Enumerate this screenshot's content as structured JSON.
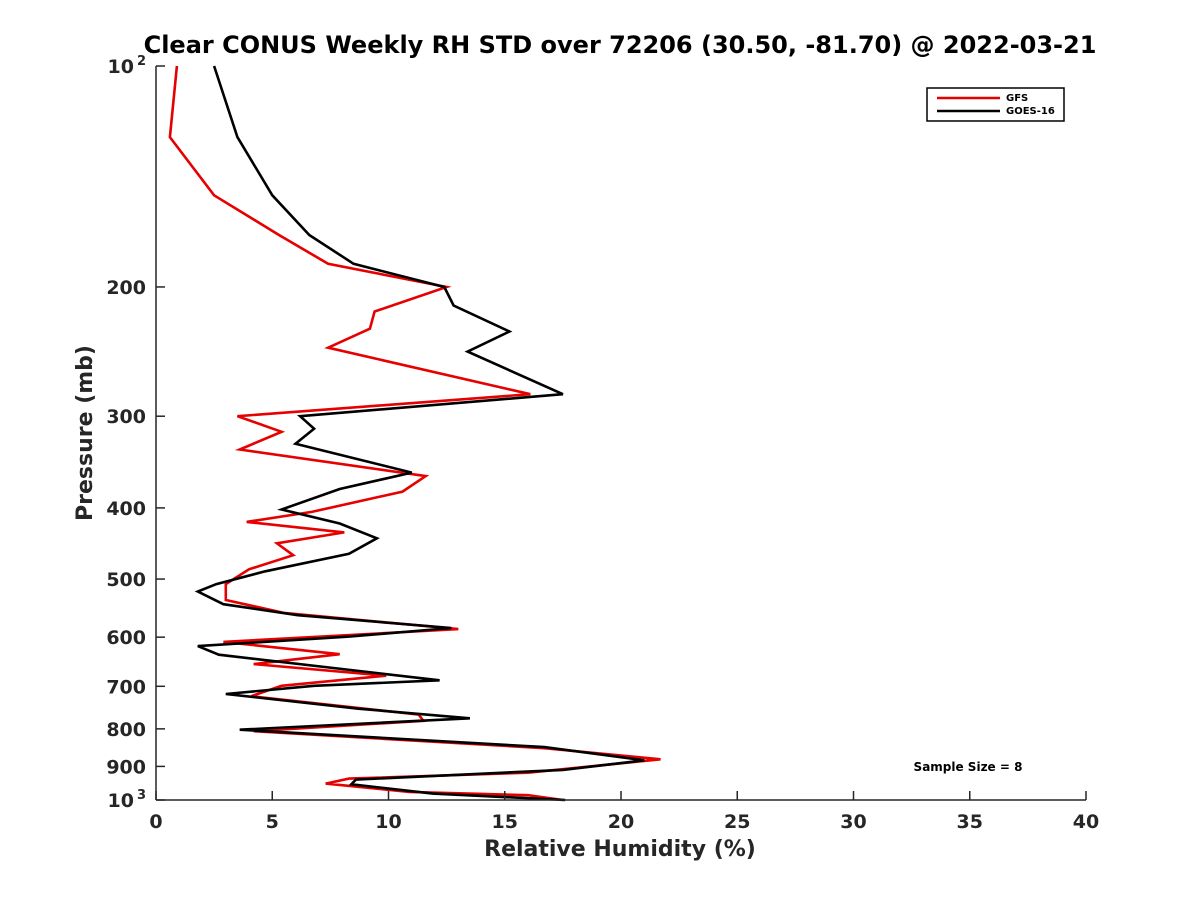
{
  "colors": {
    "GFS": "#e60000",
    "GOES-16": "#000000"
  },
  "chart_data": {
    "type": "line",
    "title": "Clear CONUS Weekly RH STD over 72206 (30.50, -81.70) @ 2022-03-21",
    "xlabel": "Relative Humidity (%)",
    "ylabel": "Pressure (mb)",
    "xlim": [
      0,
      40
    ],
    "ylim": [
      100,
      1000
    ],
    "y_scale": "log",
    "y_reversed": true,
    "x_ticks": [
      "0",
      "5",
      "10",
      "15",
      "20",
      "25",
      "30",
      "35",
      "40"
    ],
    "y_ticks": [
      {
        "value": 100,
        "label": "10",
        "sup": "2"
      },
      {
        "value": 200,
        "label": "200"
      },
      {
        "value": 300,
        "label": "300"
      },
      {
        "value": 400,
        "label": "400"
      },
      {
        "value": 500,
        "label": "500"
      },
      {
        "value": 600,
        "label": "600"
      },
      {
        "value": 700,
        "label": "700"
      },
      {
        "value": 800,
        "label": "800"
      },
      {
        "value": 900,
        "label": "900"
      },
      {
        "value": 1000,
        "label": "10",
        "sup": "3"
      }
    ],
    "legend_position": "top-right",
    "annotation": "Sample Size = 8",
    "series": [
      {
        "name": "GFS",
        "points": [
          [
            0.9,
            100
          ],
          [
            0.6,
            125
          ],
          [
            2.5,
            150
          ],
          [
            5.3,
            170
          ],
          [
            7.4,
            186
          ],
          [
            12.5,
            200
          ],
          [
            9.4,
            216
          ],
          [
            9.2,
            228
          ],
          [
            7.4,
            242
          ],
          [
            16.1,
            280
          ],
          [
            3.5,
            300
          ],
          [
            5.4,
            315
          ],
          [
            3.6,
            333
          ],
          [
            11.6,
            362
          ],
          [
            10.6,
            380
          ],
          [
            6.7,
            405
          ],
          [
            3.9,
            418
          ],
          [
            8.1,
            432
          ],
          [
            5.2,
            447
          ],
          [
            5.9,
            464
          ],
          [
            4.0,
            485
          ],
          [
            3.0,
            508
          ],
          [
            3.0,
            534
          ],
          [
            5.5,
            556
          ],
          [
            13.0,
            585
          ],
          [
            2.9,
            609
          ],
          [
            7.9,
            633
          ],
          [
            4.2,
            653
          ],
          [
            9.9,
            677
          ],
          [
            5.4,
            699
          ],
          [
            4.1,
            722
          ],
          [
            11.3,
            765
          ],
          [
            11.5,
            780
          ],
          [
            4.2,
            806
          ],
          [
            16.7,
            850
          ],
          [
            21.7,
            880
          ],
          [
            16.0,
            918
          ],
          [
            8.3,
            935
          ],
          [
            7.3,
            950
          ],
          [
            10.9,
            975
          ],
          [
            16.0,
            985
          ],
          [
            17.5,
            1000
          ]
        ]
      },
      {
        "name": "GOES-16",
        "points": [
          [
            2.5,
            100
          ],
          [
            3.5,
            125
          ],
          [
            5.0,
            150
          ],
          [
            6.6,
            170
          ],
          [
            8.5,
            186
          ],
          [
            12.4,
            200
          ],
          [
            12.8,
            212
          ],
          [
            15.2,
            230
          ],
          [
            13.4,
            245
          ],
          [
            17.5,
            280
          ],
          [
            6.2,
            300
          ],
          [
            6.8,
            312
          ],
          [
            6.0,
            327
          ],
          [
            11.0,
            358
          ],
          [
            7.9,
            377
          ],
          [
            5.4,
            402
          ],
          [
            7.9,
            420
          ],
          [
            9.5,
            440
          ],
          [
            8.3,
            462
          ],
          [
            4.7,
            488
          ],
          [
            2.6,
            508
          ],
          [
            1.8,
            520
          ],
          [
            2.9,
            541
          ],
          [
            6.1,
            560
          ],
          [
            12.7,
            583
          ],
          [
            8.3,
            599
          ],
          [
            1.8,
            617
          ],
          [
            2.7,
            634
          ],
          [
            12.2,
            687
          ],
          [
            6.8,
            699
          ],
          [
            3.0,
            717
          ],
          [
            8.7,
            751
          ],
          [
            13.5,
            774
          ],
          [
            3.6,
            802
          ],
          [
            16.7,
            847
          ],
          [
            21.0,
            883
          ],
          [
            17.5,
            910
          ],
          [
            8.6,
            938
          ],
          [
            8.4,
            952
          ],
          [
            11.9,
            980
          ],
          [
            17.6,
            1000
          ]
        ]
      }
    ]
  }
}
